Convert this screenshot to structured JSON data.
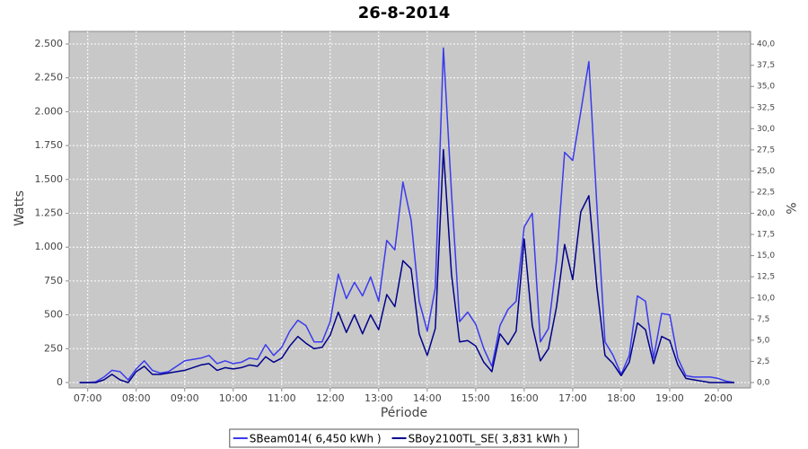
{
  "chart_data": {
    "type": "line",
    "title": "26-8-2014",
    "xlabel": "Période",
    "ylabel": "Watts",
    "y2label": "%",
    "x": [
      "06:50",
      "07:00",
      "07:10",
      "07:20",
      "07:30",
      "07:40",
      "07:50",
      "08:00",
      "08:10",
      "08:20",
      "08:30",
      "08:40",
      "08:50",
      "09:00",
      "09:10",
      "09:20",
      "09:30",
      "09:40",
      "09:50",
      "10:00",
      "10:10",
      "10:20",
      "10:30",
      "10:40",
      "10:50",
      "11:00",
      "11:10",
      "11:20",
      "11:30",
      "11:40",
      "11:50",
      "12:00",
      "12:10",
      "12:20",
      "12:30",
      "12:40",
      "12:50",
      "13:00",
      "13:10",
      "13:20",
      "13:30",
      "13:40",
      "13:50",
      "14:00",
      "14:10",
      "14:20",
      "14:30",
      "14:40",
      "14:50",
      "15:00",
      "15:10",
      "15:20",
      "15:30",
      "15:40",
      "15:50",
      "16:00",
      "16:10",
      "16:20",
      "16:30",
      "16:40",
      "16:50",
      "17:00",
      "17:10",
      "17:20",
      "17:30",
      "17:40",
      "17:50",
      "18:00",
      "18:10",
      "18:20",
      "18:30",
      "18:40",
      "18:50",
      "19:00",
      "19:10",
      "19:20",
      "19:30",
      "19:40",
      "19:50",
      "20:00",
      "20:10",
      "20:20"
    ],
    "xlim": [
      "06:37",
      "20:40"
    ],
    "xticks": [
      "07:00",
      "08:00",
      "09:00",
      "10:00",
      "11:00",
      "12:00",
      "13:00",
      "14:00",
      "15:00",
      "16:00",
      "17:00",
      "18:00",
      "19:00",
      "20:00"
    ],
    "ylim": [
      -40,
      2593
    ],
    "yticks": [
      0,
      250,
      500,
      750,
      {
        "value": 1000,
        "label": "1.000"
      },
      {
        "value": 1250,
        "label": "1.250"
      },
      {
        "value": 1500,
        "label": "1.500"
      },
      {
        "value": 1750,
        "label": "1.750"
      },
      {
        "value": 2000,
        "label": "2.000"
      },
      {
        "value": 2250,
        "label": "2.250"
      },
      {
        "value": 2500,
        "label": "2.500"
      }
    ],
    "y2lim": [
      -0.64,
      41.5
    ],
    "y2ticks": [
      {
        "value": 0,
        "label": "0,0"
      },
      {
        "value": 2.5,
        "label": "2,5"
      },
      {
        "value": 5,
        "label": "5,0"
      },
      {
        "value": 7.5,
        "label": "7,5"
      },
      {
        "value": 10,
        "label": "10,0"
      },
      {
        "value": 12.5,
        "label": "12,5"
      },
      {
        "value": 15,
        "label": "15,0"
      },
      {
        "value": 17.5,
        "label": "17,5"
      },
      {
        "value": 20,
        "label": "20,0"
      },
      {
        "value": 22.5,
        "label": "22,5"
      },
      {
        "value": 25,
        "label": "25,0"
      },
      {
        "value": 27.5,
        "label": "27,5"
      },
      {
        "value": 30,
        "label": "30,0"
      },
      {
        "value": 32.5,
        "label": "32,5"
      },
      {
        "value": 35,
        "label": "35,0"
      },
      {
        "value": 37.5,
        "label": "37,5"
      },
      {
        "value": 40,
        "label": "40,0"
      }
    ],
    "grid": true,
    "legend": "bottom",
    "series": [
      {
        "name": "SBeam014( 6,450 kWh )",
        "color": "#3a3aee",
        "values": [
          0,
          0,
          5,
          40,
          90,
          80,
          20,
          100,
          160,
          90,
          70,
          80,
          120,
          160,
          170,
          180,
          200,
          140,
          160,
          140,
          150,
          180,
          170,
          280,
          200,
          260,
          380,
          460,
          420,
          300,
          300,
          450,
          800,
          620,
          740,
          640,
          780,
          600,
          1050,
          980,
          1480,
          1200,
          600,
          380,
          700,
          2470,
          1400,
          450,
          520,
          430,
          250,
          120,
          420,
          540,
          600,
          1150,
          1250,
          300,
          400,
          900,
          1700,
          1640,
          2000,
          2370,
          1300,
          300,
          200,
          60,
          200,
          640,
          600,
          180,
          510,
          500,
          180,
          50,
          40,
          40,
          40,
          30,
          10,
          0
        ]
      },
      {
        "name": "SBoy2100TL_SE( 3,831 kWh )",
        "color": "#00008b",
        "values": [
          0,
          0,
          0,
          20,
          60,
          20,
          0,
          80,
          120,
          60,
          60,
          70,
          80,
          90,
          110,
          130,
          140,
          90,
          110,
          100,
          110,
          130,
          120,
          190,
          150,
          180,
          270,
          340,
          290,
          250,
          260,
          350,
          520,
          370,
          500,
          360,
          500,
          390,
          650,
          560,
          900,
          840,
          360,
          200,
          400,
          1720,
          800,
          300,
          310,
          270,
          150,
          80,
          360,
          280,
          380,
          1060,
          420,
          160,
          250,
          560,
          1020,
          760,
          1260,
          1380,
          700,
          200,
          140,
          50,
          150,
          440,
          390,
          140,
          340,
          310,
          130,
          30,
          20,
          10,
          0,
          0,
          0,
          0
        ]
      }
    ]
  }
}
